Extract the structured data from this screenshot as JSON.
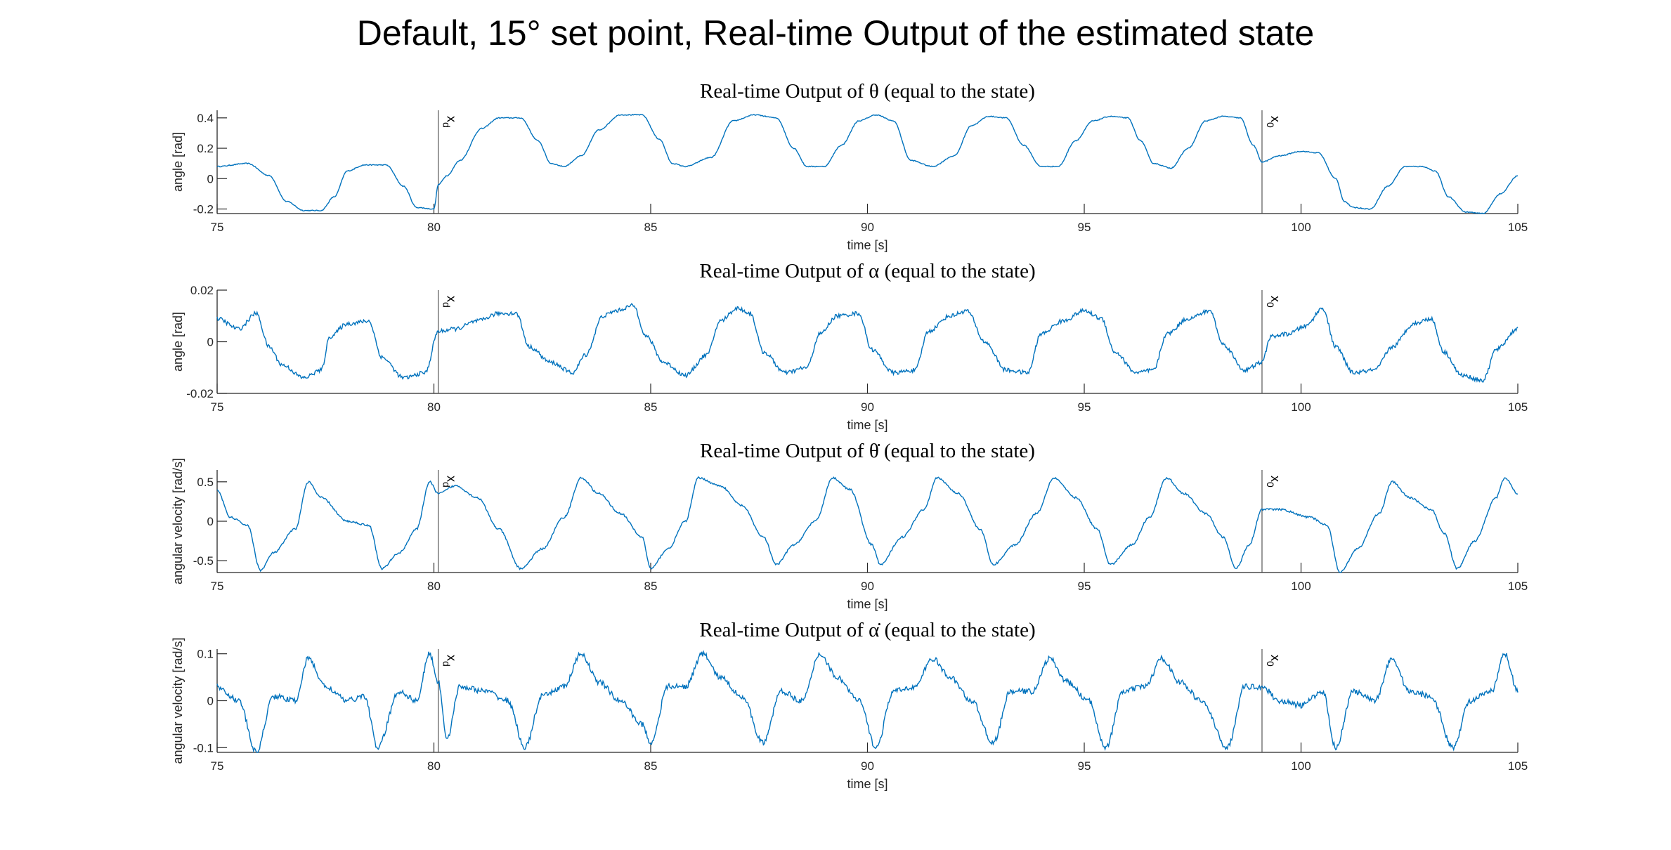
{
  "figure": {
    "title": "Default, 15° set point, Real-time Output of the estimated state"
  },
  "colors": {
    "line": "#0072BD",
    "axis": "#262626",
    "marker": "#555555"
  },
  "chart_data": [
    {
      "type": "line",
      "title": "Real-time Output of θ (equal to the state)",
      "xlabel": "time [s]",
      "ylabel": "angle [rad]",
      "xlim": [
        75,
        105
      ],
      "ylim": [
        -0.23,
        0.45
      ],
      "xticks": [
        "75",
        "80",
        "85",
        "90",
        "95",
        "100",
        "105"
      ],
      "yticks": [
        {
          "v": -0.2,
          "label": "-0.2"
        },
        {
          "v": 0,
          "label": "0"
        },
        {
          "v": 0.2,
          "label": "0.2"
        },
        {
          "v": 0.4,
          "label": "0.4"
        }
      ],
      "markers": [
        {
          "x": 80.1,
          "label": "x_d"
        },
        {
          "x": 99.1,
          "label": "x_0"
        }
      ],
      "noise": 0.003,
      "points": [
        [
          75,
          0.08
        ],
        [
          75.7,
          0.1
        ],
        [
          76.2,
          0.02
        ],
        [
          76.6,
          -0.15
        ],
        [
          77,
          -0.21
        ],
        [
          77.4,
          -0.21
        ],
        [
          77.7,
          -0.12
        ],
        [
          78,
          0.05
        ],
        [
          78.4,
          0.09
        ],
        [
          78.9,
          0.09
        ],
        [
          79.3,
          -0.05
        ],
        [
          79.6,
          -0.19
        ],
        [
          80,
          -0.2
        ],
        [
          80.1,
          -0.04
        ],
        [
          80.3,
          0.02
        ],
        [
          80.6,
          0.12
        ],
        [
          81.1,
          0.33
        ],
        [
          81.5,
          0.4
        ],
        [
          82,
          0.4
        ],
        [
          82.4,
          0.25
        ],
        [
          82.7,
          0.1
        ],
        [
          83,
          0.08
        ],
        [
          83.4,
          0.15
        ],
        [
          83.8,
          0.32
        ],
        [
          84.3,
          0.42
        ],
        [
          84.8,
          0.42
        ],
        [
          85.2,
          0.26
        ],
        [
          85.5,
          0.1
        ],
        [
          85.8,
          0.08
        ],
        [
          86.4,
          0.14
        ],
        [
          86.9,
          0.38
        ],
        [
          87.4,
          0.42
        ],
        [
          87.9,
          0.4
        ],
        [
          88.3,
          0.2
        ],
        [
          88.6,
          0.08
        ],
        [
          89,
          0.08
        ],
        [
          89.4,
          0.22
        ],
        [
          89.8,
          0.38
        ],
        [
          90.2,
          0.42
        ],
        [
          90.6,
          0.38
        ],
        [
          91,
          0.12
        ],
        [
          91.5,
          0.08
        ],
        [
          92,
          0.15
        ],
        [
          92.4,
          0.35
        ],
        [
          92.8,
          0.41
        ],
        [
          93.2,
          0.4
        ],
        [
          93.6,
          0.22
        ],
        [
          94,
          0.08
        ],
        [
          94.4,
          0.08
        ],
        [
          94.8,
          0.25
        ],
        [
          95.2,
          0.38
        ],
        [
          95.6,
          0.41
        ],
        [
          96,
          0.4
        ],
        [
          96.3,
          0.25
        ],
        [
          96.6,
          0.1
        ],
        [
          97,
          0.07
        ],
        [
          97.4,
          0.2
        ],
        [
          97.8,
          0.38
        ],
        [
          98.2,
          0.41
        ],
        [
          98.6,
          0.4
        ],
        [
          98.9,
          0.22
        ],
        [
          99.1,
          0.11
        ],
        [
          99.5,
          0.15
        ],
        [
          100,
          0.18
        ],
        [
          100.4,
          0.17
        ],
        [
          100.8,
          0.0
        ],
        [
          101,
          -0.15
        ],
        [
          101.2,
          -0.19
        ],
        [
          101.6,
          -0.2
        ],
        [
          102,
          -0.05
        ],
        [
          102.4,
          0.08
        ],
        [
          102.8,
          0.08
        ],
        [
          103.1,
          0.05
        ],
        [
          103.4,
          -0.12
        ],
        [
          103.8,
          -0.22
        ],
        [
          104.2,
          -0.23
        ],
        [
          104.6,
          -0.1
        ],
        [
          105,
          0.02
        ]
      ]
    },
    {
      "type": "line",
      "title": "Real-time Output of α (equal to the state)",
      "xlabel": "time [s]",
      "ylabel": "angle [rad]",
      "xlim": [
        75,
        105
      ],
      "ylim": [
        -0.02,
        0.02
      ],
      "xticks": [
        "75",
        "80",
        "85",
        "90",
        "95",
        "100",
        "105"
      ],
      "yticks": [
        {
          "v": -0.02,
          "label": "-0.02"
        },
        {
          "v": 0,
          "label": "0"
        },
        {
          "v": 0.02,
          "label": "0.02"
        }
      ],
      "markers": [
        {
          "x": 80.1,
          "label": "x_d"
        },
        {
          "x": 99.1,
          "label": "x_0"
        }
      ],
      "noise": 0.0008,
      "points": [
        [
          75,
          0.009
        ],
        [
          75.5,
          0.005
        ],
        [
          75.9,
          0.011
        ],
        [
          76.2,
          -0.002
        ],
        [
          76.5,
          -0.009
        ],
        [
          77,
          -0.014
        ],
        [
          77.4,
          -0.011
        ],
        [
          77.6,
          0.002
        ],
        [
          78,
          0.007
        ],
        [
          78.5,
          0.008
        ],
        [
          78.8,
          -0.006
        ],
        [
          79.3,
          -0.014
        ],
        [
          79.8,
          -0.012
        ],
        [
          80.1,
          0.004
        ],
        [
          80.5,
          0.005
        ],
        [
          81,
          0.008
        ],
        [
          81.5,
          0.011
        ],
        [
          81.9,
          0.011
        ],
        [
          82.2,
          -0.002
        ],
        [
          82.7,
          -0.008
        ],
        [
          83.2,
          -0.012
        ],
        [
          83.5,
          -0.005
        ],
        [
          83.9,
          0.01
        ],
        [
          84.2,
          0.012
        ],
        [
          84.6,
          0.014
        ],
        [
          84.9,
          0.002
        ],
        [
          85.3,
          -0.008
        ],
        [
          85.8,
          -0.013
        ],
        [
          86.3,
          -0.005
        ],
        [
          86.6,
          0.008
        ],
        [
          87,
          0.013
        ],
        [
          87.3,
          0.011
        ],
        [
          87.6,
          -0.004
        ],
        [
          88.1,
          -0.012
        ],
        [
          88.6,
          -0.01
        ],
        [
          88.9,
          0.003
        ],
        [
          89.3,
          0.01
        ],
        [
          89.8,
          0.011
        ],
        [
          90.1,
          -0.003
        ],
        [
          90.6,
          -0.012
        ],
        [
          91.1,
          -0.011
        ],
        [
          91.4,
          0.004
        ],
        [
          91.9,
          0.01
        ],
        [
          92.3,
          0.012
        ],
        [
          92.7,
          0.0
        ],
        [
          93.2,
          -0.011
        ],
        [
          93.7,
          -0.012
        ],
        [
          94,
          0.003
        ],
        [
          94.5,
          0.008
        ],
        [
          95,
          0.012
        ],
        [
          95.4,
          0.009
        ],
        [
          95.7,
          -0.004
        ],
        [
          96.2,
          -0.012
        ],
        [
          96.6,
          -0.011
        ],
        [
          96.9,
          0.003
        ],
        [
          97.4,
          0.009
        ],
        [
          97.9,
          0.012
        ],
        [
          98.2,
          -0.001
        ],
        [
          98.7,
          -0.011
        ],
        [
          99.1,
          -0.008
        ],
        [
          99.3,
          0.002
        ],
        [
          99.7,
          0.003
        ],
        [
          100.1,
          0.006
        ],
        [
          100.5,
          0.013
        ],
        [
          100.8,
          -0.002
        ],
        [
          101.2,
          -0.012
        ],
        [
          101.7,
          -0.011
        ],
        [
          102.1,
          -0.002
        ],
        [
          102.6,
          0.007
        ],
        [
          103,
          0.009
        ],
        [
          103.3,
          -0.004
        ],
        [
          103.7,
          -0.013
        ],
        [
          104.2,
          -0.015
        ],
        [
          104.5,
          -0.003
        ],
        [
          105,
          0.005
        ]
      ]
    },
    {
      "type": "line",
      "title": "Real-time Output of θ̇ (equal to the state)",
      "xlabel": "time [s]",
      "ylabel": "angular velocity [rad/s]",
      "xlim": [
        75,
        105
      ],
      "ylim": [
        -0.65,
        0.65
      ],
      "xticks": [
        "75",
        "80",
        "85",
        "90",
        "95",
        "100",
        "105"
      ],
      "yticks": [
        {
          "v": -0.5,
          "label": "-0.5"
        },
        {
          "v": 0,
          "label": "0"
        },
        {
          "v": 0.5,
          "label": "0.5"
        }
      ],
      "markers": [
        {
          "x": 80.1,
          "label": "x_d"
        },
        {
          "x": 99.1,
          "label": "x_0"
        }
      ],
      "noise": 0.012,
      "points": [
        [
          75,
          0.4
        ],
        [
          75.3,
          0.05
        ],
        [
          75.7,
          -0.05
        ],
        [
          76,
          -0.62
        ],
        [
          76.3,
          -0.4
        ],
        [
          76.8,
          -0.1
        ],
        [
          77.1,
          0.5
        ],
        [
          77.4,
          0.3
        ],
        [
          78,
          0.0
        ],
        [
          78.5,
          -0.05
        ],
        [
          78.8,
          -0.6
        ],
        [
          79.2,
          -0.4
        ],
        [
          79.6,
          -0.1
        ],
        [
          79.9,
          0.5
        ],
        [
          80.1,
          0.35
        ],
        [
          80.5,
          0.45
        ],
        [
          81,
          0.3
        ],
        [
          81.5,
          -0.1
        ],
        [
          82,
          -0.6
        ],
        [
          82.5,
          -0.35
        ],
        [
          83,
          0.05
        ],
        [
          83.4,
          0.55
        ],
        [
          83.8,
          0.35
        ],
        [
          84.3,
          0.1
        ],
        [
          84.8,
          -0.2
        ],
        [
          85,
          -0.6
        ],
        [
          85.4,
          -0.35
        ],
        [
          85.8,
          0.0
        ],
        [
          86.1,
          0.55
        ],
        [
          86.6,
          0.45
        ],
        [
          87.1,
          0.2
        ],
        [
          87.6,
          -0.2
        ],
        [
          87.9,
          -0.55
        ],
        [
          88.3,
          -0.3
        ],
        [
          88.8,
          0.0
        ],
        [
          89.2,
          0.55
        ],
        [
          89.6,
          0.4
        ],
        [
          90.1,
          -0.3
        ],
        [
          90.3,
          -0.55
        ],
        [
          90.8,
          -0.2
        ],
        [
          91.3,
          0.15
        ],
        [
          91.6,
          0.55
        ],
        [
          92.1,
          0.35
        ],
        [
          92.6,
          -0.1
        ],
        [
          92.9,
          -0.55
        ],
        [
          93.4,
          -0.3
        ],
        [
          93.9,
          0.1
        ],
        [
          94.3,
          0.55
        ],
        [
          94.8,
          0.3
        ],
        [
          95.3,
          -0.1
        ],
        [
          95.6,
          -0.55
        ],
        [
          96.1,
          -0.3
        ],
        [
          96.5,
          0.05
        ],
        [
          96.9,
          0.55
        ],
        [
          97.3,
          0.35
        ],
        [
          97.8,
          0.1
        ],
        [
          98.2,
          -0.2
        ],
        [
          98.5,
          -0.6
        ],
        [
          98.8,
          -0.3
        ],
        [
          99.1,
          0.15
        ],
        [
          99.5,
          0.15
        ],
        [
          100.2,
          0.05
        ],
        [
          100.6,
          -0.05
        ],
        [
          100.9,
          -0.65
        ],
        [
          101.3,
          -0.35
        ],
        [
          101.8,
          0.1
        ],
        [
          102.1,
          0.5
        ],
        [
          102.5,
          0.3
        ],
        [
          103,
          0.15
        ],
        [
          103.3,
          -0.15
        ],
        [
          103.6,
          -0.6
        ],
        [
          104,
          -0.25
        ],
        [
          104.5,
          0.3
        ],
        [
          104.7,
          0.55
        ],
        [
          105,
          0.35
        ]
      ]
    },
    {
      "type": "line",
      "title": "Real-time Output of α̇ (equal to the state)",
      "xlabel": "time [s]",
      "ylabel": "angular velocity [rad/s]",
      "xlim": [
        75,
        105
      ],
      "ylim": [
        -0.11,
        0.11
      ],
      "xticks": [
        "75",
        "80",
        "85",
        "90",
        "95",
        "100",
        "105"
      ],
      "yticks": [
        {
          "v": -0.1,
          "label": "-0.1"
        },
        {
          "v": 0,
          "label": "0"
        },
        {
          "v": 0.1,
          "label": "0.1"
        }
      ],
      "markers": [
        {
          "x": 80.1,
          "label": "x_d"
        },
        {
          "x": 99.1,
          "label": "x_0"
        }
      ],
      "noise": 0.006,
      "points": [
        [
          75,
          0.03
        ],
        [
          75.5,
          0.0
        ],
        [
          75.9,
          -0.11
        ],
        [
          76.3,
          0.01
        ],
        [
          76.8,
          0.0
        ],
        [
          77.1,
          0.09
        ],
        [
          77.5,
          0.03
        ],
        [
          78,
          0.0
        ],
        [
          78.4,
          0.01
        ],
        [
          78.7,
          -0.1
        ],
        [
          79.2,
          0.02
        ],
        [
          79.6,
          0.0
        ],
        [
          79.9,
          0.1
        ],
        [
          80.1,
          0.04
        ],
        [
          80.3,
          -0.08
        ],
        [
          80.6,
          0.03
        ],
        [
          81.2,
          0.02
        ],
        [
          81.7,
          0.0
        ],
        [
          82.1,
          -0.1
        ],
        [
          82.5,
          0.01
        ],
        [
          83,
          0.03
        ],
        [
          83.4,
          0.1
        ],
        [
          83.8,
          0.04
        ],
        [
          84.3,
          0.0
        ],
        [
          84.8,
          -0.05
        ],
        [
          85,
          -0.09
        ],
        [
          85.4,
          0.03
        ],
        [
          85.8,
          0.03
        ],
        [
          86.2,
          0.1
        ],
        [
          86.6,
          0.05
        ],
        [
          87.1,
          0.01
        ],
        [
          87.6,
          -0.09
        ],
        [
          88,
          0.02
        ],
        [
          88.5,
          0.0
        ],
        [
          88.9,
          0.1
        ],
        [
          89.3,
          0.05
        ],
        [
          89.8,
          0.0
        ],
        [
          90.2,
          -0.1
        ],
        [
          90.6,
          0.02
        ],
        [
          91.1,
          0.03
        ],
        [
          91.5,
          0.09
        ],
        [
          91.9,
          0.05
        ],
        [
          92.4,
          0.0
        ],
        [
          92.9,
          -0.09
        ],
        [
          93.3,
          0.02
        ],
        [
          93.8,
          0.02
        ],
        [
          94.2,
          0.09
        ],
        [
          94.6,
          0.04
        ],
        [
          95.1,
          0.0
        ],
        [
          95.5,
          -0.1
        ],
        [
          95.9,
          0.02
        ],
        [
          96.4,
          0.03
        ],
        [
          96.8,
          0.09
        ],
        [
          97.2,
          0.04
        ],
        [
          97.7,
          0.0
        ],
        [
          98.3,
          -0.1
        ],
        [
          98.7,
          0.03
        ],
        [
          99.1,
          0.03
        ],
        [
          99.5,
          0.0
        ],
        [
          100,
          -0.01
        ],
        [
          100.5,
          0.02
        ],
        [
          100.8,
          -0.1
        ],
        [
          101.2,
          0.02
        ],
        [
          101.7,
          0.0
        ],
        [
          102.1,
          0.09
        ],
        [
          102.5,
          0.02
        ],
        [
          103,
          0.01
        ],
        [
          103.5,
          -0.1
        ],
        [
          103.9,
          0.0
        ],
        [
          104.4,
          0.02
        ],
        [
          104.7,
          0.1
        ],
        [
          105,
          0.02
        ]
      ]
    }
  ]
}
